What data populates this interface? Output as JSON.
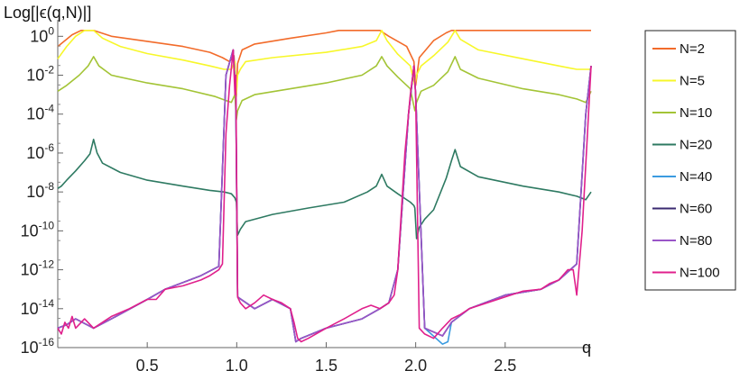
{
  "chart_data": {
    "type": "line",
    "title": "",
    "xlabel": "q",
    "ylabel": "Log[|ϵ(q,N)|]",
    "x_range": [
      0,
      2.98
    ],
    "y_scale": "log",
    "y_range": [
      1e-16,
      3
    ],
    "x_ticks": [
      {
        "value": 0.5,
        "label": "0.5"
      },
      {
        "value": 1.0,
        "label": "1.0"
      },
      {
        "value": 1.5,
        "label": "1.5"
      },
      {
        "value": 2.0,
        "label": "2.0"
      },
      {
        "value": 2.5,
        "label": "2.5"
      }
    ],
    "y_ticks": [
      {
        "value": 1.0,
        "base": "10",
        "exp": "0"
      },
      {
        "value": 0.01,
        "base": "10",
        "exp": "-2"
      },
      {
        "value": 0.0001,
        "base": "10",
        "exp": "-4"
      },
      {
        "value": 1e-06,
        "base": "10",
        "exp": "-6"
      },
      {
        "value": 1e-08,
        "base": "10",
        "exp": "-8"
      },
      {
        "value": 1e-10,
        "base": "10",
        "exp": "-10"
      },
      {
        "value": 1e-12,
        "base": "10",
        "exp": "-12"
      },
      {
        "value": 1e-14,
        "base": "10",
        "exp": "-14"
      },
      {
        "value": 1e-16,
        "base": "10",
        "exp": "-16"
      }
    ],
    "legend_position": "right",
    "grid": false,
    "series": [
      {
        "name": "N=2",
        "color": "#f26b2a",
        "x": [
          0.0,
          0.08,
          0.13,
          0.2,
          0.3,
          0.5,
          0.7,
          0.85,
          0.92,
          0.96,
          0.985,
          0.998,
          1.005,
          1.03,
          1.1,
          1.3,
          1.5,
          1.57,
          1.6,
          1.75,
          1.8,
          1.85,
          1.95,
          1.99,
          2.0,
          2.02,
          2.1,
          2.17,
          2.2,
          2.3,
          2.6,
          2.98
        ],
        "y": [
          0.3,
          1.2,
          2,
          2,
          1,
          0.55,
          0.3,
          0.15,
          0.08,
          0.05,
          0.1,
          0.001,
          0.04,
          0.2,
          0.4,
          0.8,
          1.5,
          2,
          2,
          2,
          2,
          1,
          0.3,
          0.05,
          0.003,
          0.08,
          0.6,
          1.5,
          2,
          2,
          2,
          2
        ]
      },
      {
        "name": "N=5",
        "color": "#f7f72a",
        "x": [
          0.0,
          0.05,
          0.1,
          0.15,
          0.2,
          0.25,
          0.35,
          0.5,
          0.7,
          0.85,
          0.93,
          0.97,
          0.99,
          0.998,
          1.005,
          1.02,
          1.05,
          1.2,
          1.5,
          1.7,
          1.78,
          1.81,
          1.84,
          1.9,
          1.97,
          1.995,
          2.005,
          2.03,
          2.1,
          2.18,
          2.22,
          2.25,
          2.35,
          2.6,
          2.8,
          2.9,
          2.98
        ],
        "y": [
          0.07,
          0.3,
          1,
          2,
          2,
          0.8,
          0.3,
          0.13,
          0.06,
          0.03,
          0.02,
          0.02,
          0.05,
          0.0008,
          0.01,
          0.02,
          0.05,
          0.08,
          0.15,
          0.3,
          0.6,
          2,
          0.6,
          0.12,
          0.03,
          0.003,
          0.01,
          0.03,
          0.1,
          0.5,
          2,
          0.7,
          0.2,
          0.07,
          0.03,
          0.02,
          0.02
        ]
      },
      {
        "name": "N=10",
        "color": "#a3c436",
        "x": [
          0.0,
          0.05,
          0.12,
          0.17,
          0.2,
          0.23,
          0.3,
          0.5,
          0.7,
          0.88,
          0.94,
          0.97,
          0.99,
          0.998,
          1.005,
          1.03,
          1.1,
          1.3,
          1.5,
          1.7,
          1.78,
          1.81,
          1.84,
          1.9,
          1.97,
          1.995,
          2.005,
          2.03,
          2.1,
          2.18,
          2.22,
          2.25,
          2.35,
          2.6,
          2.8,
          2.9,
          2.95,
          2.98
        ],
        "y": [
          0.0015,
          0.003,
          0.01,
          0.03,
          0.09,
          0.03,
          0.01,
          0.004,
          0.002,
          0.0008,
          0.0005,
          0.0004,
          0.001,
          5e-05,
          0.00015,
          0.0005,
          0.001,
          0.002,
          0.004,
          0.01,
          0.03,
          0.09,
          0.03,
          0.008,
          0.002,
          0.00015,
          0.0004,
          0.0015,
          0.003,
          0.015,
          0.09,
          0.02,
          0.007,
          0.002,
          0.001,
          0.0006,
          0.0004,
          0.0015
        ]
      },
      {
        "name": "N=20",
        "color": "#2e7a62",
        "x": [
          0.0,
          0.02,
          0.05,
          0.1,
          0.15,
          0.18,
          0.2,
          0.22,
          0.25,
          0.35,
          0.5,
          0.7,
          0.85,
          0.93,
          0.97,
          0.99,
          0.998,
          1.005,
          1.02,
          1.05,
          1.2,
          1.4,
          1.6,
          1.73,
          1.78,
          1.81,
          1.84,
          1.9,
          1.97,
          1.99,
          1.995,
          2.005,
          2.02,
          2.05,
          2.1,
          2.17,
          2.2,
          2.22,
          2.25,
          2.35,
          2.6,
          2.8,
          2.9,
          2.95,
          2.98
        ],
        "y": [
          1.5e-08,
          2e-08,
          4e-08,
          1.2e-07,
          4e-07,
          9e-07,
          5e-06,
          1e-06,
          3e-07,
          1e-07,
          4e-08,
          2e-08,
          1.2e-08,
          1e-08,
          8e-09,
          5e-09,
          3e-09,
          6e-11,
          1.2e-10,
          3e-10,
          7e-10,
          1.5e-09,
          3e-09,
          1e-08,
          2e-08,
          8e-08,
          2e-08,
          8e-09,
          3e-09,
          2e-09,
          1.5e-09,
          4e-11,
          1.5e-10,
          4e-10,
          1.2e-09,
          5e-08,
          4e-07,
          1.5e-06,
          2e-07,
          6e-08,
          2e-08,
          1e-08,
          6e-09,
          4e-09,
          1e-08
        ]
      },
      {
        "name": "N=40",
        "color": "#3b9be0",
        "x": [
          0.0,
          0.05,
          0.1,
          0.2,
          0.3,
          0.5,
          0.6,
          0.8,
          0.9,
          0.94,
          0.98,
          0.995,
          1.005,
          1.1,
          1.2,
          1.3,
          1.33,
          1.36,
          1.5,
          1.7,
          1.8,
          1.85,
          1.9,
          1.96,
          1.99,
          2.0,
          2.05,
          2.15,
          2.18,
          2.2,
          2.3,
          2.5,
          2.7,
          2.8,
          2.9,
          2.95,
          2.98
        ],
        "y": [
          1e-15,
          1.5e-15,
          3e-15,
          1e-15,
          3e-15,
          3e-14,
          1e-13,
          5e-13,
          1.5e-12,
          0.01,
          0.2,
          0.001,
          4e-14,
          1e-14,
          3e-14,
          1e-14,
          2e-16,
          3e-16,
          1e-15,
          3e-15,
          1e-14,
          2e-14,
          1e-12,
          0.0001,
          0.03,
          0.001,
          1e-15,
          1.5e-16,
          2e-16,
          2e-15,
          1e-14,
          5e-14,
          1e-13,
          3e-13,
          2e-12,
          0.0001,
          0.03
        ]
      },
      {
        "name": "N=60",
        "color": "#3a2a70",
        "x": [
          0.0,
          0.05,
          0.1,
          0.2,
          0.3,
          0.5,
          0.6,
          0.8,
          0.9,
          0.94,
          0.98,
          0.995,
          1.005,
          1.1,
          1.2,
          1.3,
          1.33,
          1.36,
          1.5,
          1.7,
          1.8,
          1.85,
          1.9,
          1.96,
          1.99,
          2.0,
          2.05,
          2.15,
          2.2,
          2.3,
          2.5,
          2.7,
          2.8,
          2.9,
          2.95,
          2.98
        ],
        "y": [
          1e-15,
          1.5e-15,
          3e-15,
          1e-15,
          3e-15,
          3e-14,
          1e-13,
          5e-13,
          1.5e-12,
          0.01,
          0.2,
          0.001,
          4e-14,
          1e-14,
          3e-14,
          1e-14,
          2e-16,
          3e-16,
          1e-15,
          3e-15,
          1e-14,
          2e-14,
          1e-12,
          0.0001,
          0.03,
          0.001,
          1e-15,
          4e-16,
          2e-15,
          1e-14,
          5e-14,
          1e-13,
          3e-13,
          2e-12,
          0.0001,
          0.03
        ]
      },
      {
        "name": "N=80",
        "color": "#9a55c8",
        "x": [
          0.0,
          0.05,
          0.1,
          0.2,
          0.3,
          0.5,
          0.6,
          0.8,
          0.9,
          0.94,
          0.98,
          0.995,
          1.005,
          1.1,
          1.2,
          1.3,
          1.33,
          1.36,
          1.5,
          1.7,
          1.8,
          1.85,
          1.9,
          1.96,
          1.99,
          2.0,
          2.05,
          2.15,
          2.2,
          2.3,
          2.5,
          2.7,
          2.8,
          2.9,
          2.95,
          2.98
        ],
        "y": [
          1e-15,
          1.5e-15,
          3e-15,
          1e-15,
          3e-15,
          3e-14,
          1e-13,
          5e-13,
          1.5e-12,
          0.01,
          0.2,
          0.001,
          4e-14,
          1e-14,
          3e-14,
          1e-14,
          2e-16,
          3e-16,
          1e-15,
          3e-15,
          1e-14,
          2e-14,
          1e-12,
          0.0001,
          0.03,
          0.001,
          1e-15,
          4e-16,
          2e-15,
          1e-14,
          5e-14,
          1e-13,
          3e-13,
          2e-12,
          0.0001,
          0.03
        ]
      },
      {
        "name": "N=100",
        "color": "#e0208c",
        "x": [
          0.0,
          0.02,
          0.04,
          0.06,
          0.08,
          0.1,
          0.15,
          0.2,
          0.25,
          0.3,
          0.4,
          0.5,
          0.55,
          0.6,
          0.7,
          0.8,
          0.85,
          0.9,
          0.92,
          0.94,
          0.96,
          0.98,
          0.99,
          0.995,
          1.005,
          1.02,
          1.05,
          1.1,
          1.15,
          1.2,
          1.25,
          1.3,
          1.32,
          1.34,
          1.36,
          1.4,
          1.5,
          1.6,
          1.7,
          1.75,
          1.8,
          1.85,
          1.88,
          1.9,
          1.94,
          1.97,
          1.99,
          2.0,
          2.02,
          2.05,
          2.1,
          2.15,
          2.2,
          2.25,
          2.3,
          2.4,
          2.5,
          2.6,
          2.7,
          2.75,
          2.8,
          2.85,
          2.88,
          2.9,
          2.93,
          2.96,
          2.98
        ],
        "y": [
          1e-15,
          5e-16,
          2e-15,
          1e-15,
          4e-15,
          1e-15,
          3e-15,
          1e-15,
          2e-15,
          4e-15,
          1e-14,
          3e-14,
          3e-14,
          1e-13,
          1.5e-13,
          3e-13,
          5e-13,
          1e-12,
          2e-12,
          1e-05,
          0.003,
          0.2,
          0.001,
          0.01,
          4e-14,
          2e-14,
          1e-14,
          2e-14,
          5e-14,
          3e-14,
          2e-14,
          1e-14,
          2e-15,
          3e-16,
          2e-16,
          3e-16,
          1e-15,
          3e-15,
          1e-14,
          1.5e-14,
          1e-14,
          2e-14,
          5e-14,
          1e-12,
          1e-06,
          0.001,
          0.03,
          0.001,
          1e-15,
          5e-16,
          3e-16,
          1e-15,
          3e-15,
          5e-15,
          1e-14,
          2e-14,
          4e-14,
          8e-14,
          1e-13,
          2e-13,
          3e-13,
          1e-12,
          1e-12,
          5e-14,
          1e-10,
          1e-05,
          0.03
        ]
      }
    ]
  }
}
